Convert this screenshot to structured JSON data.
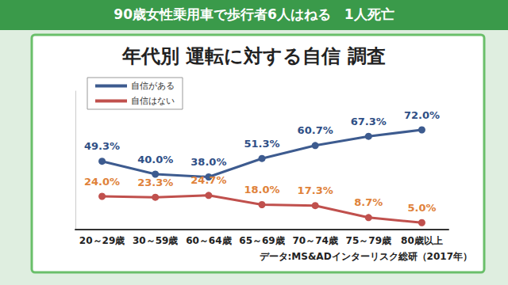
{
  "chart_data": {
    "type": "line",
    "title": "年代別 運転に対する自信 調査",
    "annotations": [
      "90歳女性乗用車で歩行者6人はねる　1人死亡",
      "データ:MS&ADインターリスク総研（2017年）"
    ],
    "categories": [
      "20～29歳",
      "30～59歳",
      "60～64歳",
      "65～69歳",
      "70～74歳",
      "75～79歳",
      "80歳以上"
    ],
    "series": [
      {
        "name": "自信がある",
        "color": "#3d5b8f",
        "values": [
          49.3,
          40.0,
          38.0,
          51.3,
          60.7,
          67.3,
          72.0
        ],
        "value_labels": [
          "49.3%",
          "40.0%",
          "38.0%",
          "51.3%",
          "60.7%",
          "67.3%",
          "72.0%"
        ]
      },
      {
        "name": "自信はない",
        "color": "#c0504d",
        "values": [
          24.0,
          23.3,
          24.7,
          18.0,
          17.3,
          8.7,
          5.0
        ],
        "value_labels": [
          "24.0%",
          "23.3%",
          "24.7%",
          "18.0%",
          "17.3%",
          "8.7%",
          "5.0%"
        ]
      }
    ],
    "ylim": [
      0,
      100
    ],
    "grid": false,
    "legend": "top-left",
    "data_labels": true,
    "tick_labels": "x",
    "marker": "circle"
  }
}
